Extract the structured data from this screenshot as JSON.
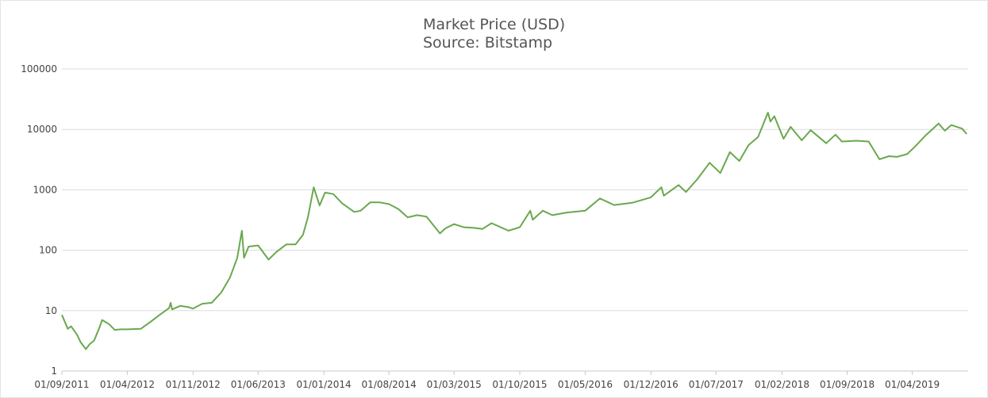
{
  "chart_data": {
    "type": "line",
    "title": "Market Price (USD)",
    "subtitle": "Source: Bitstamp",
    "xlabel": "",
    "ylabel": "",
    "y_scale": "log",
    "ylim": [
      1,
      100000
    ],
    "y_ticks": [
      "1",
      "10",
      "100",
      "1000",
      "10000",
      "100000"
    ],
    "x_range": [
      "2011-09-01",
      "2019-09-30"
    ],
    "x_ticks": [
      {
        "date": "2011-09-01",
        "label": "01/09/2011"
      },
      {
        "date": "2012-04-01",
        "label": "01/04/2012"
      },
      {
        "date": "2012-11-01",
        "label": "01/11/2012"
      },
      {
        "date": "2013-06-01",
        "label": "01/06/2013"
      },
      {
        "date": "2014-01-01",
        "label": "01/01/2014"
      },
      {
        "date": "2014-08-01",
        "label": "01/08/2014"
      },
      {
        "date": "2015-03-01",
        "label": "01/03/2015"
      },
      {
        "date": "2015-10-01",
        "label": "01/10/2015"
      },
      {
        "date": "2016-05-01",
        "label": "01/05/2016"
      },
      {
        "date": "2016-12-01",
        "label": "01/12/2016"
      },
      {
        "date": "2017-07-01",
        "label": "01/07/2017"
      },
      {
        "date": "2018-02-01",
        "label": "01/02/2018"
      },
      {
        "date": "2018-09-01",
        "label": "01/09/2018"
      },
      {
        "date": "2019-04-01",
        "label": "01/04/2019"
      }
    ],
    "grid": true,
    "legend": "none",
    "series": [
      {
        "color": "#6aa84f",
        "points": [
          [
            "2011-09-01",
            8.5
          ],
          [
            "2011-09-20",
            5.0
          ],
          [
            "2011-10-01",
            5.5
          ],
          [
            "2011-10-20",
            4.0
          ],
          [
            "2011-11-01",
            3.0
          ],
          [
            "2011-11-18",
            2.3
          ],
          [
            "2011-12-01",
            2.8
          ],
          [
            "2011-12-15",
            3.2
          ],
          [
            "2012-01-01",
            5.2
          ],
          [
            "2012-01-10",
            7.0
          ],
          [
            "2012-02-01",
            6.0
          ],
          [
            "2012-02-20",
            4.8
          ],
          [
            "2012-03-10",
            4.9
          ],
          [
            "2012-04-01",
            4.9
          ],
          [
            "2012-05-15",
            5.0
          ],
          [
            "2012-06-15",
            6.5
          ],
          [
            "2012-07-15",
            8.5
          ],
          [
            "2012-08-15",
            11.0
          ],
          [
            "2012-08-20",
            13.5
          ],
          [
            "2012-08-25",
            10.5
          ],
          [
            "2012-09-20",
            12.0
          ],
          [
            "2012-10-15",
            11.5
          ],
          [
            "2012-11-01",
            10.8
          ],
          [
            "2012-12-01",
            13.0
          ],
          [
            "2013-01-01",
            13.5
          ],
          [
            "2013-02-01",
            20.0
          ],
          [
            "2013-03-01",
            35.0
          ],
          [
            "2013-03-25",
            75.0
          ],
          [
            "2013-04-09",
            210.0
          ],
          [
            "2013-04-16",
            75.0
          ],
          [
            "2013-05-01",
            115.0
          ],
          [
            "2013-06-01",
            120.0
          ],
          [
            "2013-07-05",
            70.0
          ],
          [
            "2013-08-01",
            95.0
          ],
          [
            "2013-09-01",
            125.0
          ],
          [
            "2013-10-01",
            125.0
          ],
          [
            "2013-10-25",
            180.0
          ],
          [
            "2013-11-10",
            350.0
          ],
          [
            "2013-11-29",
            1100.0
          ],
          [
            "2013-12-18",
            550.0
          ],
          [
            "2014-01-05",
            900.0
          ],
          [
            "2014-02-01",
            850.0
          ],
          [
            "2014-03-01",
            600.0
          ],
          [
            "2014-04-10",
            430.0
          ],
          [
            "2014-05-01",
            450.0
          ],
          [
            "2014-06-01",
            620.0
          ],
          [
            "2014-07-01",
            620.0
          ],
          [
            "2014-08-01",
            580.0
          ],
          [
            "2014-09-01",
            480.0
          ],
          [
            "2014-10-01",
            350.0
          ],
          [
            "2014-11-01",
            380.0
          ],
          [
            "2014-12-01",
            360.0
          ],
          [
            "2015-01-14",
            190.0
          ],
          [
            "2015-02-01",
            230.0
          ],
          [
            "2015-03-01",
            270.0
          ],
          [
            "2015-04-01",
            240.0
          ],
          [
            "2015-05-01",
            235.0
          ],
          [
            "2015-06-01",
            225.0
          ],
          [
            "2015-07-01",
            280.0
          ],
          [
            "2015-08-25",
            210.0
          ],
          [
            "2015-10-01",
            240.0
          ],
          [
            "2015-11-04",
            450.0
          ],
          [
            "2015-11-12",
            320.0
          ],
          [
            "2015-12-15",
            450.0
          ],
          [
            "2016-01-15",
            380.0
          ],
          [
            "2016-03-01",
            420.0
          ],
          [
            "2016-05-01",
            450.0
          ],
          [
            "2016-06-18",
            720.0
          ],
          [
            "2016-08-03",
            560.0
          ],
          [
            "2016-10-01",
            610.0
          ],
          [
            "2016-12-01",
            750.0
          ],
          [
            "2017-01-04",
            1100.0
          ],
          [
            "2017-01-12",
            800.0
          ],
          [
            "2017-03-01",
            1200.0
          ],
          [
            "2017-03-25",
            920.0
          ],
          [
            "2017-05-01",
            1500.0
          ],
          [
            "2017-06-10",
            2800.0
          ],
          [
            "2017-07-15",
            1900.0
          ],
          [
            "2017-08-15",
            4200.0
          ],
          [
            "2017-09-15",
            3000.0
          ],
          [
            "2017-10-15",
            5500.0
          ],
          [
            "2017-11-15",
            7500.0
          ],
          [
            "2017-12-17",
            19000.0
          ],
          [
            "2017-12-25",
            13500.0
          ],
          [
            "2018-01-07",
            16500.0
          ],
          [
            "2018-02-06",
            7000.0
          ],
          [
            "2018-03-01",
            11000.0
          ],
          [
            "2018-04-06",
            6600.0
          ],
          [
            "2018-05-05",
            9700.0
          ],
          [
            "2018-06-25",
            5900.0
          ],
          [
            "2018-07-25",
            8200.0
          ],
          [
            "2018-08-15",
            6300.0
          ],
          [
            "2018-10-01",
            6500.0
          ],
          [
            "2018-11-10",
            6300.0
          ],
          [
            "2018-12-15",
            3200.0
          ],
          [
            "2019-01-15",
            3600.0
          ],
          [
            "2019-02-10",
            3500.0
          ],
          [
            "2019-03-15",
            3900.0
          ],
          [
            "2019-04-10",
            5200.0
          ],
          [
            "2019-05-15",
            8000.0
          ],
          [
            "2019-06-26",
            12500.0
          ],
          [
            "2019-07-16",
            9500.0
          ],
          [
            "2019-08-06",
            11800.0
          ],
          [
            "2019-09-10",
            10300.0
          ],
          [
            "2019-09-25",
            8400.0
          ]
        ]
      }
    ]
  }
}
